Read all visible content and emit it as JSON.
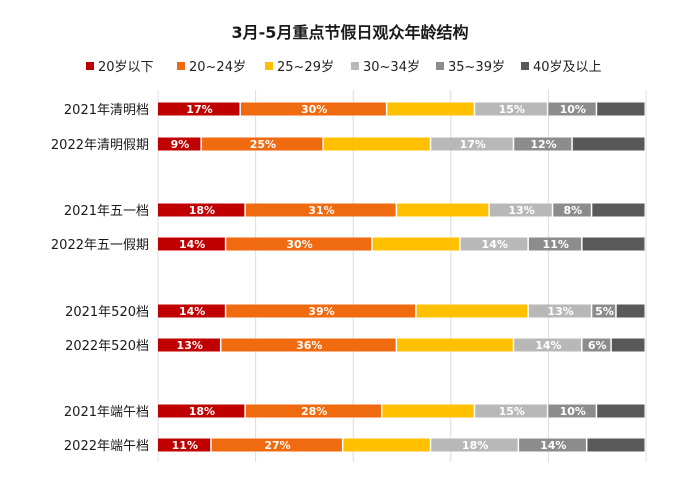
{
  "chart_data": {
    "type": "bar",
    "orientation": "horizontal",
    "stacked": true,
    "title": "3月-5月重点节假日观众年龄结构",
    "xlabel": "",
    "ylabel": "",
    "xlim": [
      0,
      100
    ],
    "grid": true,
    "legend_position": "top",
    "categories": [
      "2021年清明档",
      "2022年清明假期",
      "2021年五一档",
      "2022年五一假期",
      "2021年520档",
      "2022年520档",
      "2021年端午档",
      "2022年端午档"
    ],
    "group_break_after": [
      1,
      3,
      5
    ],
    "series": [
      {
        "name": "20岁以下",
        "color": "#c00000",
        "values": [
          17,
          9,
          18,
          14,
          14,
          13,
          18,
          11
        ],
        "labels": [
          "17%",
          "9%",
          "18%",
          "14%",
          "14%",
          "13%",
          "18%",
          "11%"
        ]
      },
      {
        "name": "20~24岁",
        "color": "#f06a0f",
        "values": [
          30,
          25,
          31,
          30,
          39,
          36,
          28,
          27
        ],
        "labels": [
          "30%",
          "25%",
          "31%",
          "30%",
          "39%",
          "36%",
          "28%",
          "27%"
        ]
      },
      {
        "name": "25~29岁",
        "color": "#ffc000",
        "values": [
          18,
          22,
          19,
          18,
          23,
          24,
          19,
          18
        ],
        "labels": [
          "",
          "",
          "",
          "",
          "",
          "",
          "",
          ""
        ]
      },
      {
        "name": "30~34岁",
        "color": "#b8b8b8",
        "values": [
          15,
          17,
          13,
          14,
          13,
          14,
          15,
          18
        ],
        "labels": [
          "15%",
          "17%",
          "13%",
          "14%",
          "13%",
          "14%",
          "15%",
          "18%"
        ]
      },
      {
        "name": "35~39岁",
        "color": "#8c8c8c",
        "values": [
          10,
          12,
          8,
          11,
          5,
          6,
          10,
          14
        ],
        "labels": [
          "10%",
          "12%",
          "8%",
          "11%",
          "5%",
          "6%",
          "10%",
          "14%"
        ]
      },
      {
        "name": "40岁及以上",
        "color": "#595959",
        "values": [
          10,
          15,
          11,
          13,
          6,
          7,
          10,
          12
        ],
        "labels": [
          "",
          "",
          "",
          "",
          "",
          "",
          "",
          ""
        ]
      }
    ]
  }
}
